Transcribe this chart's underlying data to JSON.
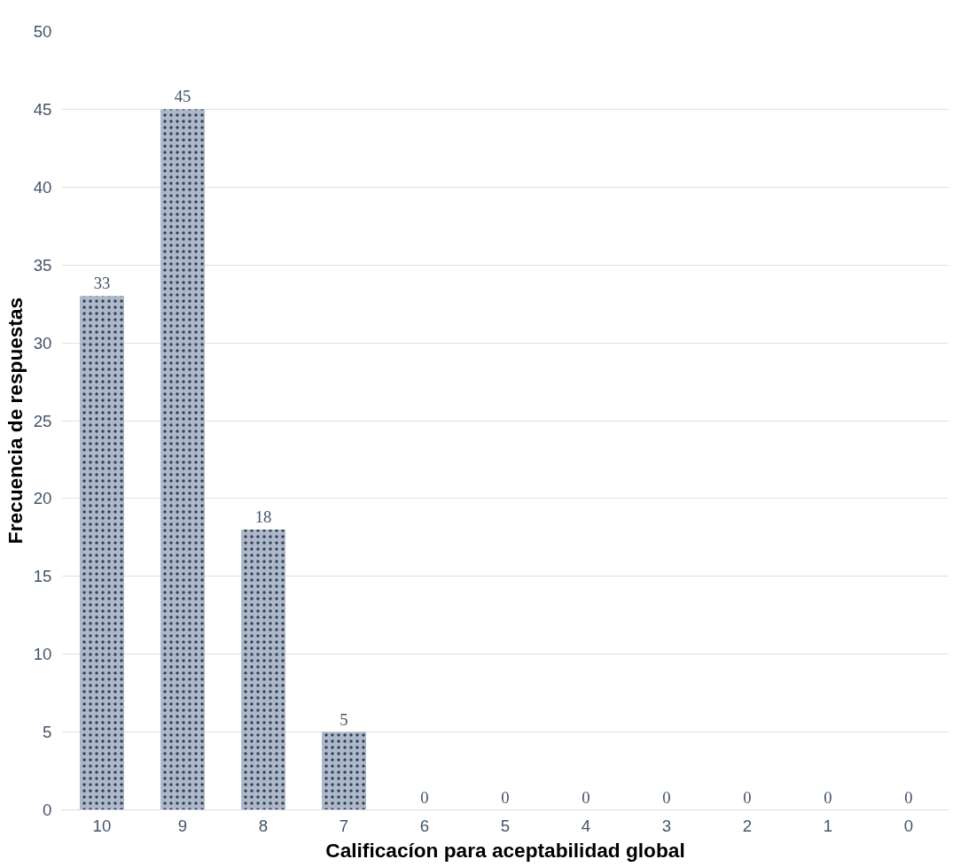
{
  "chart_data": {
    "type": "bar",
    "xlabel": "Calificacíon para aceptabilidad global",
    "ylabel": "Frecuencia de respuestas",
    "categories": [
      "10",
      "9",
      "8",
      "7",
      "6",
      "5",
      "4",
      "3",
      "2",
      "1",
      "0"
    ],
    "values": [
      33,
      45,
      18,
      5,
      0,
      0,
      0,
      0,
      0,
      0,
      0
    ],
    "color": "#adb9ca",
    "ylim": [
      0,
      50
    ],
    "yticks": [
      0,
      5,
      10,
      15,
      20,
      25,
      30,
      35,
      40,
      45,
      50
    ],
    "grid": "y",
    "data_labels": true
  }
}
